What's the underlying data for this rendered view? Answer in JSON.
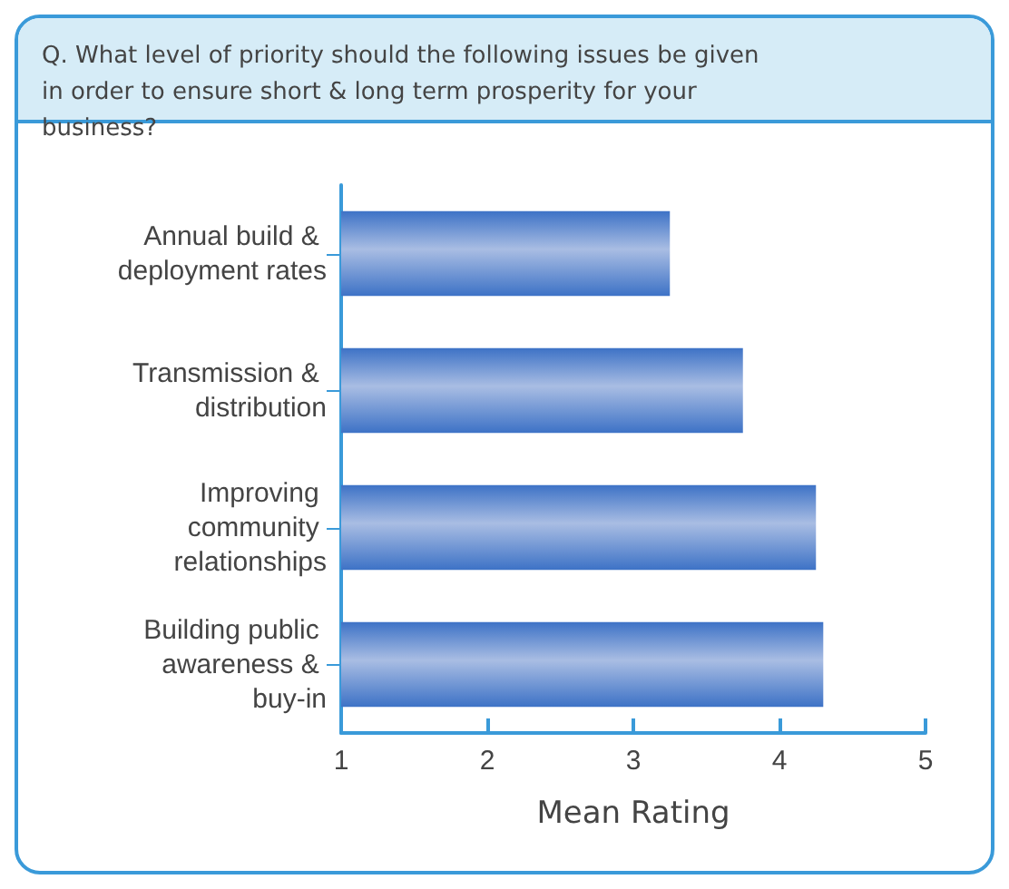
{
  "chart_data": {
    "type": "bar",
    "orientation": "horizontal",
    "title": "Q. What level of priority should the following issues be given in order to ensure short & long term prosperity for your business?",
    "xlabel": "Mean Rating",
    "categories": [
      "Annual build & deployment rates",
      "Transmission & distribution",
      "Improving community relationships",
      "Building public awareness & buy-in"
    ],
    "values": [
      3.25,
      3.75,
      4.25,
      4.3
    ],
    "color": "#3d72c6",
    "xlim": [
      1,
      5
    ],
    "xticks": [
      1,
      2,
      3,
      4,
      5
    ],
    "grid": false
  }
}
